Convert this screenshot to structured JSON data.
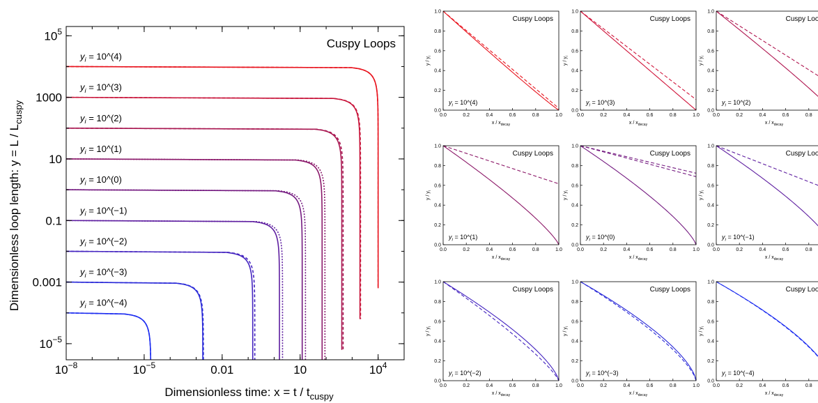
{
  "colors": {
    "red": "#e8121c",
    "magenta": "#9c1862",
    "purple": "#6f1a8c",
    "indigo": "#4a27b8",
    "blue": "#1c2cf0",
    "axis": "#000000"
  },
  "chart_data": [
    {
      "type": "line",
      "panel": "main",
      "title": "Cuspy Loops",
      "xlabel": "Dimensionless time:  x = t / t",
      "xlabel_sub": "cuspy",
      "ylabel": "Dimensionless loop length:  y = L / L",
      "ylabel_sub": "cuspy",
      "x_scale": "log",
      "y_scale": "log",
      "xlim": [
        1e-08,
        100000
      ],
      "ylim": [
        3e-06,
        200000
      ],
      "x_ticks": [
        {
          "value": 1e-08,
          "label": "10",
          "exp": "−8"
        },
        {
          "value": 1e-05,
          "label": "10",
          "exp": "−5"
        },
        {
          "value": 0.01,
          "label": "0.01",
          "exp": ""
        },
        {
          "value": 10,
          "label": "10",
          "exp": ""
        },
        {
          "value": 10000,
          "label": "10",
          "exp": "4"
        }
      ],
      "y_ticks": [
        {
          "value": 1e-05,
          "label": "10",
          "exp": "−5"
        },
        {
          "value": 0.001,
          "label": "0.001",
          "exp": ""
        },
        {
          "value": 0.1,
          "label": "0.1",
          "exp": ""
        },
        {
          "value": 10,
          "label": "10",
          "exp": ""
        },
        {
          "value": 1000,
          "label": "1000",
          "exp": ""
        },
        {
          "value": 100000,
          "label": "10",
          "exp": "5"
        }
      ],
      "series": [
        {
          "label_prefix": "y",
          "label_sub": "i",
          "label_text": " = 10^(4)",
          "y_initial": 10000,
          "x_end_solid": 10000,
          "x_end_dashed": 10000,
          "color": "#e8121c",
          "dash": "4,3"
        },
        {
          "label_prefix": "y",
          "label_sub": "i",
          "label_text": " = 10^(3)",
          "y_initial": 1000,
          "x_end_solid": 2000,
          "x_end_dashed": 2100,
          "color": "#c8143a",
          "dash": "4,3"
        },
        {
          "label_prefix": "y",
          "label_sub": "i",
          "label_text": " = 10^(2)",
          "y_initial": 100,
          "x_end_solid": 400,
          "x_end_dashed": 450,
          "color": "#a81650",
          "dash": "4,3"
        },
        {
          "label_prefix": "y",
          "label_sub": "i",
          "label_text": " = 10^(1)",
          "y_initial": 10,
          "x_end_solid": 70,
          "x_end_dashed": 90,
          "color": "#8a186a",
          "dash": "2,2"
        },
        {
          "label_prefix": "y",
          "label_sub": "i",
          "label_text": " = 10^(0)",
          "y_initial": 1,
          "x_end_solid": 12,
          "x_end_dashed": 16,
          "color": "#741a80",
          "dash": "2,2"
        },
        {
          "label_prefix": "y",
          "label_sub": "i",
          "label_text": " = 10^(−1)",
          "y_initial": 0.1,
          "x_end_solid": 1.6,
          "x_end_dashed": 2.1,
          "color": "#5e1ea0",
          "dash": "2,2"
        },
        {
          "label_prefix": "y",
          "label_sub": "i",
          "label_text": " = 10^(−2)",
          "y_initial": 0.01,
          "x_end_solid": 0.15,
          "x_end_dashed": 0.18,
          "color": "#4424c0",
          "dash": "4,3"
        },
        {
          "label_prefix": "y",
          "label_sub": "i",
          "label_text": " = 10^(−3)",
          "y_initial": 0.001,
          "x_end_solid": 0.0018,
          "x_end_dashed": 0.0019,
          "color": "#2a2ad8",
          "dash": "4,3"
        },
        {
          "label_prefix": "y",
          "label_sub": "i",
          "label_text": " = 10^(−4)",
          "y_initial": 0.0001,
          "x_end_solid": 1.8e-05,
          "x_end_dashed": 1.8e-05,
          "color": "#1c2cf0",
          "dash": "4,3"
        }
      ]
    },
    {
      "type": "line",
      "panel": "grid",
      "title": "Cuspy Loops",
      "xlabel": "x / x",
      "xlabel_sub": "decay",
      "ylabel": "y / y",
      "ylabel_sub": "i",
      "xlim": [
        0,
        1
      ],
      "ylim": [
        0,
        1
      ],
      "x_ticks": [
        "0.0",
        "0.2",
        "0.4",
        "0.6",
        "0.8",
        "1.0"
      ],
      "y_ticks": [
        "0.0",
        "0.2",
        "0.4",
        "0.6",
        "0.8",
        "1.0"
      ],
      "panels": [
        {
          "label_text": " = 10^(4)",
          "color": "#e8121c",
          "solid_exp": 1.05,
          "dashed": [
            1.02
          ]
        },
        {
          "label_text": " = 10^(3)",
          "color": "#d0143a",
          "solid_exp": 1.0,
          "dashed": [
            1.12
          ]
        },
        {
          "label_text": " = 10^(2)",
          "color": "#b01650",
          "solid_exp": 0.93,
          "dashed": [
            1.35
          ]
        },
        {
          "label_text": " = 10^(1)",
          "color": "#8c1868",
          "solid_exp": 0.82,
          "dashed": [
            2.6
          ]
        },
        {
          "label_text": " = 10^(0)",
          "color": "#741a80",
          "solid_exp": 0.78,
          "dashed": [
            3.6,
            3.2
          ]
        },
        {
          "label_text": " = 10^(−1)",
          "color": "#5e1ea0",
          "solid_exp": 0.78,
          "dashed": [
            2.2
          ]
        },
        {
          "label_text": " = 10^(−2)",
          "color": "#4424c0",
          "solid_exp": 0.72,
          "dashed": [
            0.82
          ]
        },
        {
          "label_text": " = 10^(−3)",
          "color": "#2a2ad8",
          "solid_exp": 0.67,
          "dashed": [
            0.72
          ]
        },
        {
          "label_text": " = 10^(−4)",
          "color": "#1c2cf0",
          "solid_exp": 0.66,
          "dashed": [
            0.67
          ]
        }
      ]
    }
  ]
}
